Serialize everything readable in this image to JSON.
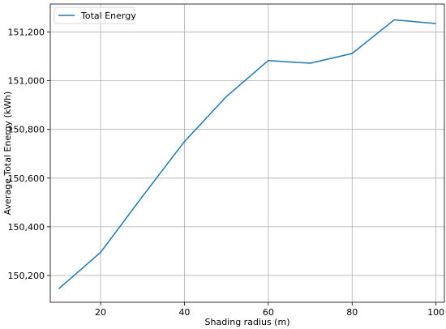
{
  "chart_data": {
    "type": "line",
    "title": "",
    "xlabel": "Shading radius (m)",
    "ylabel": "Average Total Energy (kWh)",
    "xlim": [
      8,
      102
    ],
    "ylim": [
      150090,
      151315
    ],
    "xticks": [
      20,
      40,
      60,
      80,
      100
    ],
    "xtick_labels": [
      "20",
      "40",
      "60",
      "80",
      "100"
    ],
    "yticks": [
      150200,
      150400,
      150600,
      150800,
      151000,
      151200
    ],
    "ytick_labels": [
      "150,200",
      "150,400",
      "150,600",
      "150,800",
      "151,000",
      "151,200"
    ],
    "grid": true,
    "legend": {
      "placement": "top-left"
    },
    "series": [
      {
        "name": "Total Energy",
        "color": "#1f77b4",
        "x": [
          10,
          20,
          30,
          40,
          50,
          60,
          70,
          80,
          90,
          100
        ],
        "y": [
          150145,
          150295,
          150525,
          150750,
          150935,
          151083,
          151072,
          151112,
          151250,
          151235
        ]
      }
    ]
  }
}
